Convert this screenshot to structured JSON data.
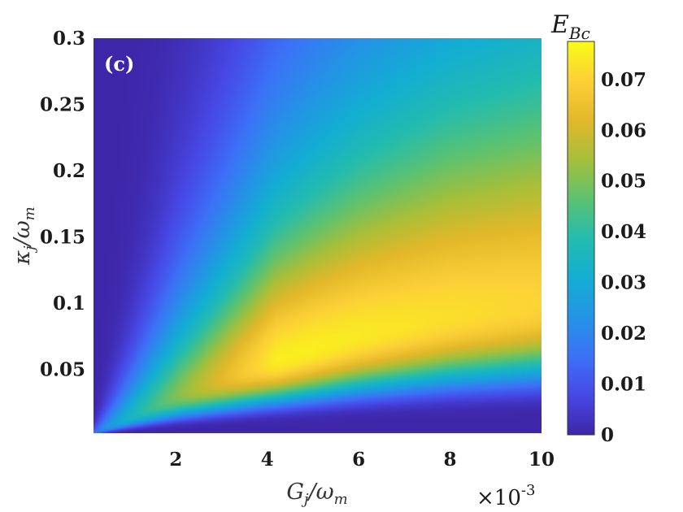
{
  "chart_data": {
    "type": "heatmap",
    "panel_label": "(c)",
    "xlabel": "Gj/ωm",
    "ylabel": "κj/ωm",
    "x_multiplier": "×10-3",
    "colorbar_title": "EBc",
    "xlim": [
      0.2,
      10
    ],
    "ylim": [
      0.002,
      0.3
    ],
    "x_ticks": [
      2,
      4,
      6,
      8,
      10
    ],
    "x_tick_labels": [
      "2",
      "4",
      "6",
      "8",
      "10"
    ],
    "y_ticks": [
      0.05,
      0.1,
      0.15,
      0.2,
      0.25,
      0.3
    ],
    "y_tick_labels": [
      "0.05",
      "0.1",
      "0.15",
      "0.2",
      "0.25",
      "0.3"
    ],
    "colorbar_ticks": [
      0,
      0.01,
      0.02,
      0.03,
      0.04,
      0.05,
      0.06,
      0.07
    ],
    "colorbar_tick_labels": [
      "0",
      "0.01",
      "0.02",
      "0.03",
      "0.04",
      "0.05",
      "0.06",
      "0.07"
    ],
    "zlim": [
      0,
      0.0775
    ],
    "colormap": "parula",
    "colormap_stops": [
      "#3e26a8",
      "#4748e6",
      "#3c72f7",
      "#2494e6",
      "#13aed2",
      "#24bcae",
      "#5cc270",
      "#a6bf3a",
      "#e2b82a",
      "#fcd037",
      "#f9fb15"
    ],
    "ridge": {
      "x": [
        0.2,
        2,
        4,
        6,
        8,
        10
      ],
      "y": [
        0.002,
        0.03,
        0.055,
        0.075,
        0.09,
        0.1
      ]
    },
    "max_value": 0.075,
    "grid": false
  }
}
